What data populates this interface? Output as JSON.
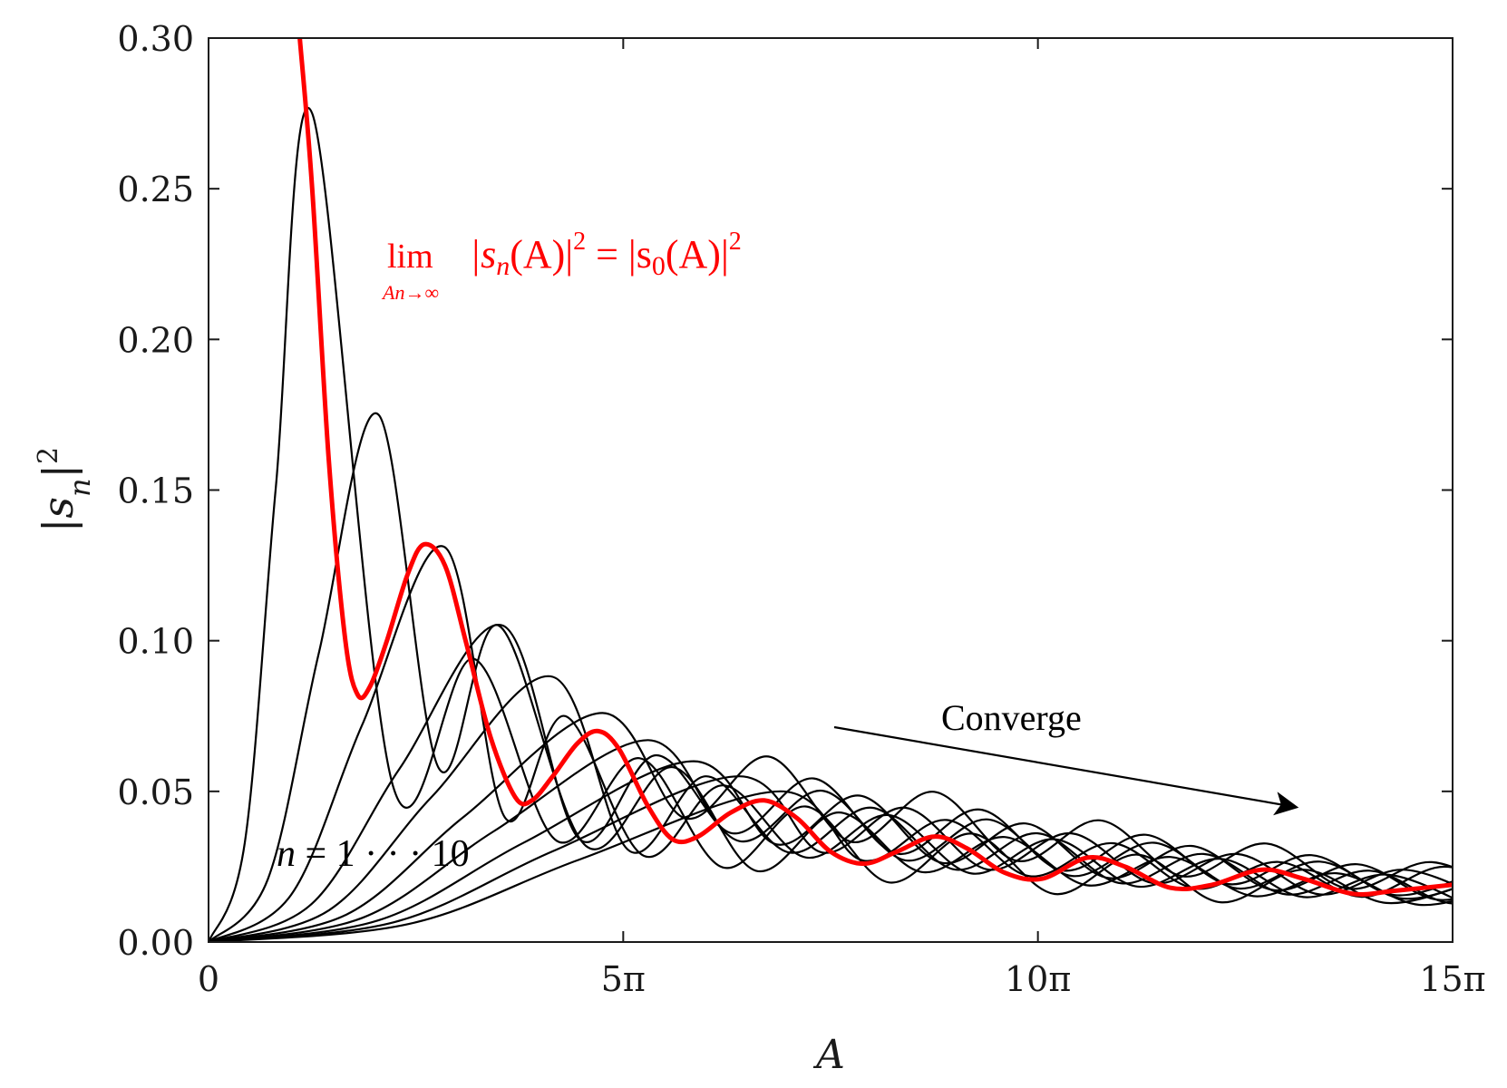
{
  "chart_data": {
    "type": "line",
    "xlabel": "A",
    "ylabel_base": "|s",
    "ylabel_sub": "n",
    "ylabel_close": "|",
    "ylabel_sup": "2",
    "xlim": [
      0,
      15
    ],
    "ylim": [
      0,
      0.3
    ],
    "x_unit": "π",
    "xticks": [
      0,
      5,
      10,
      15
    ],
    "xtick_labels": [
      "0",
      "5π",
      "10π",
      "15π"
    ],
    "yticks": [
      0,
      0.05,
      0.1,
      0.15,
      0.2,
      0.25,
      0.3
    ],
    "ytick_labels": [
      "0.00",
      "0.05",
      "0.10",
      "0.15",
      "0.20",
      "0.25",
      "0.30"
    ],
    "grid": false,
    "colors": {
      "family": "#000000",
      "limit": "#ff0000",
      "axes": "#1a1a1a"
    },
    "series": [
      {
        "name": "n = 1",
        "peaks": [
          {
            "x": 1.25,
            "y": 0.275
          },
          {
            "x": 3.2,
            "y": 0.094
          },
          {
            "x": 5.2,
            "y": 0.061
          },
          {
            "x": 7.2,
            "y": 0.045
          },
          {
            "x": 9.2,
            "y": 0.036
          },
          {
            "x": 11.2,
            "y": 0.029
          },
          {
            "x": 13.2,
            "y": 0.024
          }
        ],
        "tail_value": 0.016
      },
      {
        "name": "n = 2",
        "peaks": [
          {
            "x": 2.05,
            "y": 0.175
          },
          {
            "x": 3.5,
            "y": 0.105
          },
          {
            "x": 5.6,
            "y": 0.058
          },
          {
            "x": 7.6,
            "y": 0.043
          }
        ],
        "tail_value": 0.017
      },
      {
        "name": "n = 3",
        "peaks": [
          {
            "x": 2.85,
            "y": 0.131
          },
          {
            "x": 4.3,
            "y": 0.075
          },
          {
            "x": 6.2,
            "y": 0.052
          }
        ],
        "tail_value": 0.018
      },
      {
        "name": "n = 4",
        "peaks": [
          {
            "x": 3.55,
            "y": 0.105
          },
          {
            "x": 5.4,
            "y": 0.062
          }
        ],
        "tail_value": 0.019
      },
      {
        "name": "n = 5",
        "peaks": [
          {
            "x": 4.15,
            "y": 0.088
          },
          {
            "x": 6.0,
            "y": 0.055
          }
        ],
        "tail_value": 0.02
      },
      {
        "name": "n = 6",
        "peaks": [
          {
            "x": 4.75,
            "y": 0.076
          }
        ],
        "tail_value": 0.021
      },
      {
        "name": "n = 7",
        "peaks": [
          {
            "x": 5.3,
            "y": 0.067
          }
        ],
        "tail_value": 0.022
      },
      {
        "name": "n = 8",
        "peaks": [
          {
            "x": 5.85,
            "y": 0.06
          }
        ],
        "tail_value": 0.023
      },
      {
        "name": "n = 9",
        "peaks": [
          {
            "x": 6.4,
            "y": 0.055
          }
        ],
        "tail_value": 0.024
      },
      {
        "name": "n = 10",
        "peaks": [
          {
            "x": 6.9,
            "y": 0.05
          }
        ],
        "tail_value": 0.025
      },
      {
        "name": "limit |s0(A)|^2",
        "points": [
          [
            1.1,
            0.3
          ],
          [
            1.25,
            0.25
          ],
          [
            1.45,
            0.16
          ],
          [
            1.65,
            0.1
          ],
          [
            1.8,
            0.082
          ],
          [
            1.95,
            0.085
          ],
          [
            2.15,
            0.1
          ],
          [
            2.4,
            0.122
          ],
          [
            2.6,
            0.132
          ],
          [
            2.85,
            0.125
          ],
          [
            3.1,
            0.1
          ],
          [
            3.4,
            0.068
          ],
          [
            3.7,
            0.048
          ],
          [
            3.9,
            0.047
          ],
          [
            4.15,
            0.055
          ],
          [
            4.45,
            0.066
          ],
          [
            4.7,
            0.07
          ],
          [
            4.95,
            0.064
          ],
          [
            5.3,
            0.045
          ],
          [
            5.6,
            0.034
          ],
          [
            5.9,
            0.035
          ],
          [
            6.3,
            0.043
          ],
          [
            6.7,
            0.047
          ],
          [
            7.1,
            0.041
          ],
          [
            7.5,
            0.03
          ],
          [
            7.9,
            0.026
          ],
          [
            8.3,
            0.03
          ],
          [
            8.75,
            0.035
          ],
          [
            9.15,
            0.031
          ],
          [
            9.6,
            0.023
          ],
          [
            10.05,
            0.021
          ],
          [
            10.6,
            0.028
          ],
          [
            11.05,
            0.025
          ],
          [
            11.6,
            0.018
          ],
          [
            12.1,
            0.019
          ],
          [
            12.7,
            0.024
          ],
          [
            13.2,
            0.021
          ],
          [
            13.8,
            0.016
          ],
          [
            14.3,
            0.017
          ],
          [
            15.0,
            0.019
          ]
        ]
      }
    ],
    "annotations": {
      "limit_lim": "lim",
      "limit_sub_A": "A",
      "limit_sub_n": "n",
      "limit_sub_arrow": "→∞",
      "limit_eq_lhs_bar": "|s",
      "limit_eq_lhs_sub": "n",
      "limit_eq_lhs_arg": "(A)|",
      "limit_eq_lhs_sup": "2",
      "limit_eq_mid": " = |s",
      "limit_eq_rhs_sub": "0",
      "limit_eq_rhs_arg": "(A)|",
      "limit_eq_rhs_sup": "2",
      "converge": "Converge",
      "n_range_var": "n",
      "n_range_rest": " = 1 · · · 10"
    }
  }
}
